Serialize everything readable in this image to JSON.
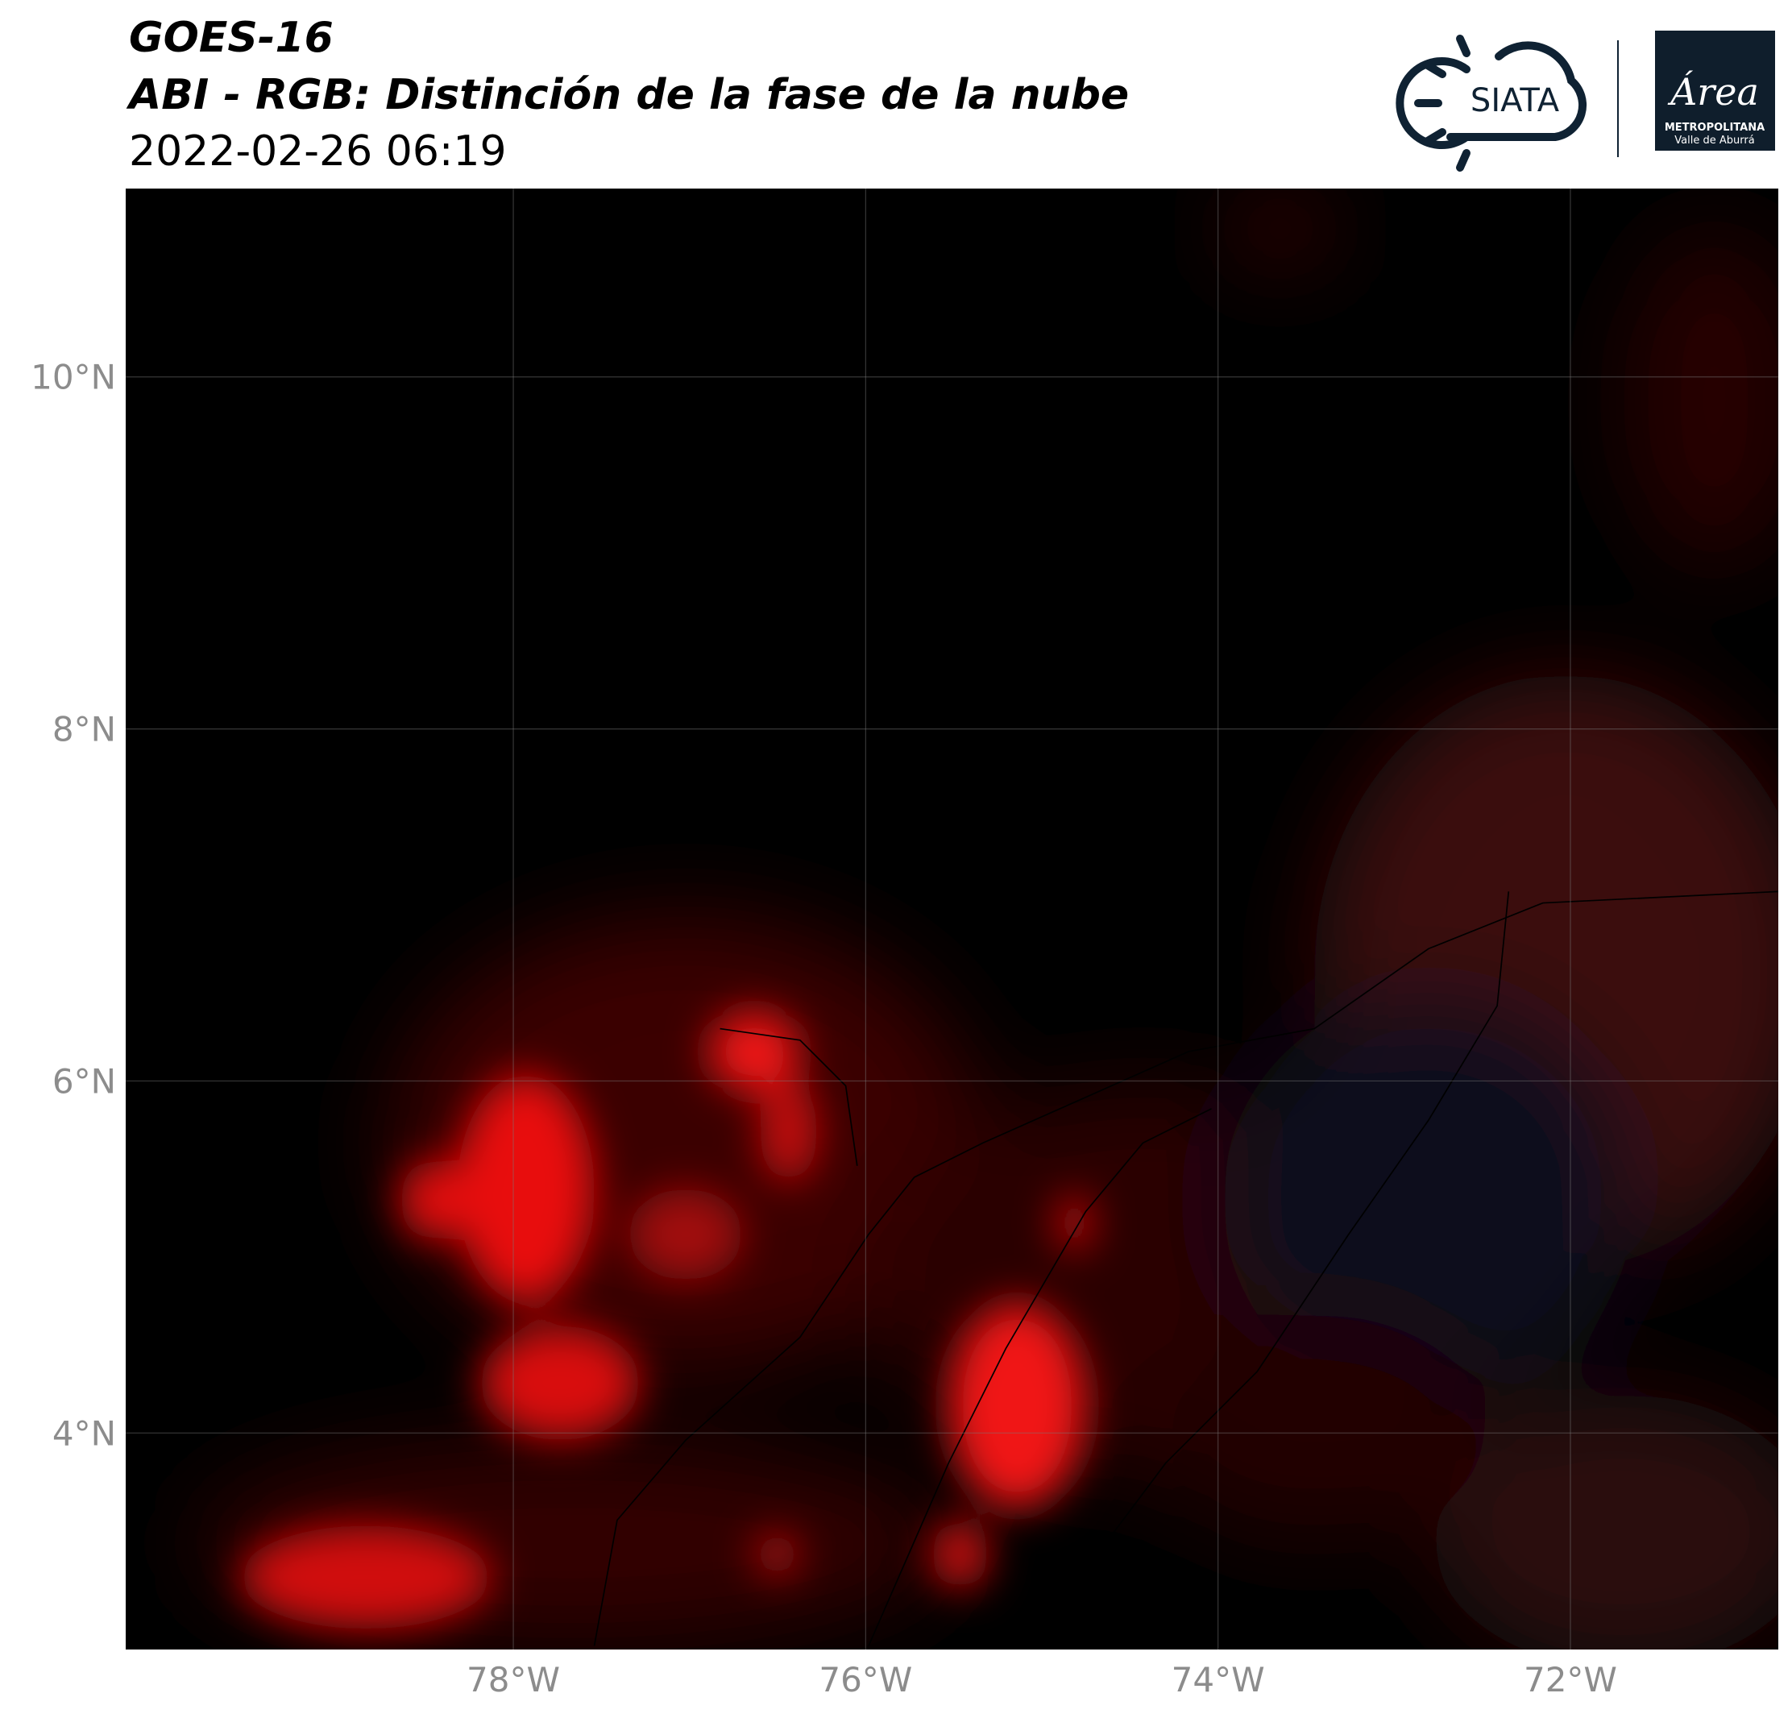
{
  "chart_data": {
    "type": "map",
    "title": "GOES-16",
    "subtitle": "ABI - RGB: Distinción de la fase de la nube",
    "timestamp": "2022-02-26 06:19",
    "xlim": [
      -80.2,
      -70.82
    ],
    "ylim": [
      2.77,
      11.07
    ],
    "xticks": [
      {
        "value": -78,
        "label": "78°W"
      },
      {
        "value": -76,
        "label": "76°W"
      },
      {
        "value": -74,
        "label": "74°W"
      },
      {
        "value": -72,
        "label": "72°W"
      }
    ],
    "yticks": [
      {
        "value": 10,
        "label": "10°N"
      },
      {
        "value": 8,
        "label": "8°N"
      },
      {
        "value": 6,
        "label": "6°N"
      },
      {
        "value": 4,
        "label": "4°N"
      }
    ],
    "grid": true
  },
  "logos": {
    "siata": "SIATA",
    "area": "Área",
    "area_line1": "METROPOLITANA",
    "area_line2": "Valle de Aburrá"
  }
}
